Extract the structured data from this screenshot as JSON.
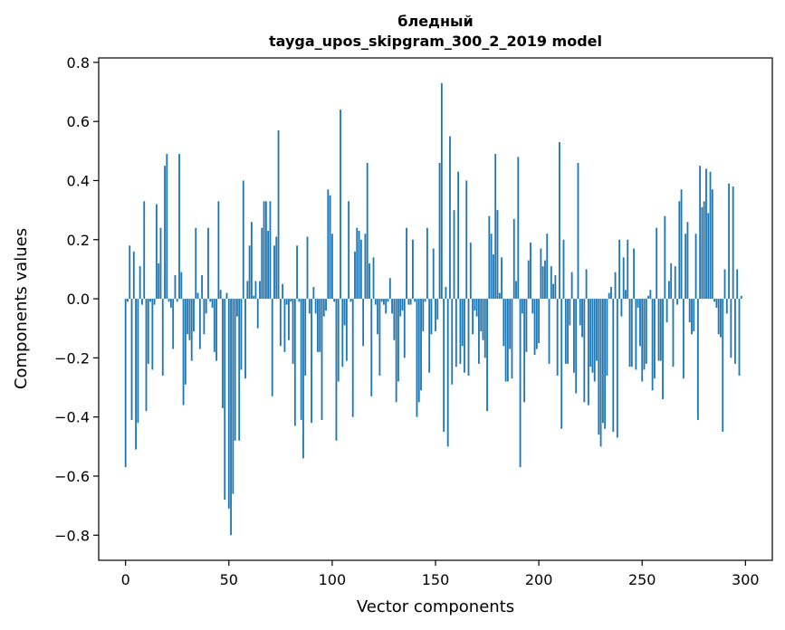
{
  "chart_data": {
    "type": "bar",
    "title_line1": "бледный",
    "title_line2": "tayga_upos_skipgram_300_2_2019 model",
    "xlabel": "Vector components",
    "ylabel": "Components values",
    "xlim": [
      -13,
      313
    ],
    "ylim": [
      -0.885,
      0.815
    ],
    "xticks": [
      0,
      50,
      100,
      150,
      200,
      250,
      300
    ],
    "yticks": [
      -0.8,
      -0.6,
      -0.4,
      -0.2,
      0.0,
      0.2,
      0.4,
      0.6,
      0.8
    ],
    "ytick_labels": [
      "−0.8",
      "−0.6",
      "−0.4",
      "−0.2",
      "0.0",
      "0.2",
      "0.4",
      "0.6",
      "0.8"
    ],
    "bar_color": "#1f77b4",
    "values": [
      -0.57,
      -0.01,
      0.18,
      -0.41,
      0.16,
      -0.51,
      -0.42,
      0.11,
      -0.02,
      0.33,
      -0.38,
      -0.22,
      -0.01,
      -0.24,
      -0.02,
      0.32,
      0.12,
      0.24,
      -0.26,
      0.45,
      0.49,
      -0.01,
      -0.03,
      -0.17,
      0.08,
      -0.01,
      0.49,
      0.09,
      -0.36,
      -0.29,
      -0.12,
      -0.14,
      -0.21,
      -0.11,
      0.24,
      0.02,
      -0.17,
      0.08,
      -0.12,
      -0.05,
      0.24,
      -0.01,
      -0.03,
      -0.18,
      -0.21,
      0.33,
      0.03,
      -0.37,
      -0.68,
      0.02,
      -0.71,
      -0.8,
      -0.66,
      -0.48,
      -0.06,
      -0.48,
      -0.24,
      0.4,
      -0.27,
      0.06,
      0.18,
      0.26,
      0.01,
      0.06,
      -0.1,
      0.06,
      0.24,
      0.33,
      0.33,
      0.23,
      0.33,
      -0.33,
      0.18,
      0.21,
      0.57,
      -0.16,
      0.05,
      -0.18,
      -0.02,
      -0.14,
      -0.01,
      -0.22,
      -0.43,
      0.18,
      -0.01,
      -0.41,
      -0.54,
      -0.26,
      0.21,
      -0.05,
      -0.42,
      0.04,
      -0.05,
      -0.18,
      -0.18,
      -0.41,
      -0.06,
      -0.04,
      0.37,
      0.35,
      0.22,
      -0.01,
      -0.48,
      -0.28,
      0.64,
      -0.23,
      -0.09,
      -0.21,
      0.33,
      -0.01,
      -0.4,
      0.16,
      0.24,
      0.23,
      0.2,
      -0.16,
      0.22,
      0.46,
      0.12,
      -0.33,
      0.14,
      -0.02,
      -0.12,
      -0.26,
      -0.01,
      -0.02,
      -0.05,
      -0.01,
      0.07,
      -0.05,
      -0.14,
      -0.35,
      -0.28,
      -0.06,
      -0.04,
      -0.2,
      0.24,
      -0.02,
      -0.02,
      0.2,
      -0.01,
      -0.4,
      -0.35,
      -0.31,
      -0.11,
      -0.01,
      0.24,
      -0.25,
      -0.12,
      0.17,
      -0.11,
      -0.07,
      0.46,
      0.73,
      -0.45,
      0.04,
      -0.5,
      0.55,
      -0.29,
      0.3,
      -0.23,
      0.43,
      -0.22,
      -0.16,
      -0.25,
      0.4,
      -0.26,
      0.19,
      -0.12,
      -0.04,
      -0.06,
      -0.22,
      -0.11,
      -0.14,
      -0.2,
      -0.38,
      0.28,
      0.22,
      0.15,
      0.49,
      0.3,
      0.02,
      0.14,
      -0.16,
      -0.28,
      -0.28,
      -0.17,
      -0.27,
      0.27,
      0.06,
      0.48,
      -0.57,
      -0.05,
      -0.35,
      -0.18,
      0.13,
      0.19,
      -0.05,
      -0.19,
      -0.17,
      -0.15,
      0.17,
      0.11,
      0.13,
      0.22,
      -0.22,
      0.11,
      0.05,
      0.08,
      -0.26,
      0.53,
      -0.44,
      0.2,
      -0.22,
      -0.22,
      -0.09,
      0.09,
      -0.25,
      -0.32,
      0.46,
      -0.09,
      -0.13,
      -0.35,
      0.1,
      -0.36,
      -0.23,
      -0.25,
      -0.28,
      -0.21,
      -0.46,
      -0.5,
      -0.42,
      -0.44,
      -0.26,
      0.02,
      0.04,
      -0.45,
      0.09,
      -0.47,
      0.2,
      -0.06,
      0.14,
      0.03,
      0.2,
      -0.23,
      -0.23,
      0.17,
      -0.24,
      -0.03,
      -0.16,
      -0.28,
      -0.24,
      -0.22,
      0.01,
      0.03,
      -0.31,
      -0.27,
      0.24,
      -0.21,
      -0.21,
      -0.34,
      0.28,
      -0.08,
      0.06,
      0.12,
      -0.23,
      0.11,
      -0.02,
      0.33,
      0.37,
      -0.27,
      0.22,
      0.26,
      -0.08,
      -0.12,
      -0.11,
      0.22,
      -0.41,
      0.45,
      0.31,
      0.33,
      0.44,
      0.29,
      0.43,
      0.37,
      -0.01,
      -0.03,
      -0.12,
      -0.13,
      -0.45,
      0.1,
      -0.05,
      0.39,
      -0.2,
      0.38,
      -0.22,
      0.1,
      -0.26,
      0.01
    ]
  }
}
